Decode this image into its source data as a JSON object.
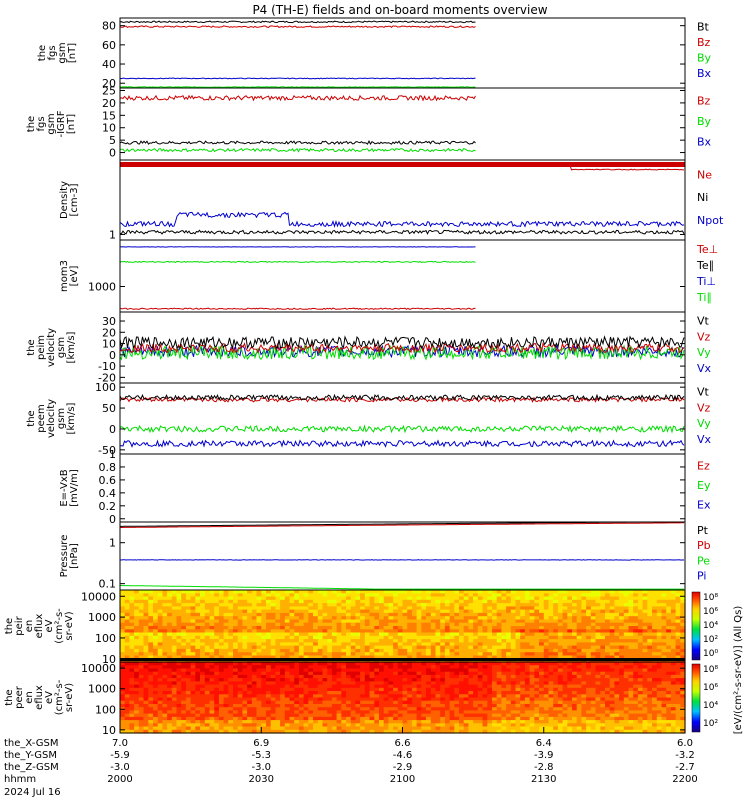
{
  "title": "P4 (TH-E) fields and on-board moments overview",
  "colors": {
    "black": "#000000",
    "red": "#cc0000",
    "green": "#00dd00",
    "blue": "#0000cc"
  },
  "xaxis": {
    "row_labels": [
      "the_X-GSM",
      "the_Y-GSM",
      "the_Z-GSM",
      "hhmm",
      "2024 Jul 16"
    ],
    "ticks": [
      {
        "vals": [
          "7.0",
          "-5.9",
          "-3.0",
          "2000"
        ]
      },
      {
        "vals": [
          "6.9",
          "-5.3",
          "-3.0",
          "2030"
        ]
      },
      {
        "vals": [
          "6.6",
          "-4.6",
          "-2.9",
          "2100"
        ]
      },
      {
        "vals": [
          "6.4",
          "-3.9",
          "-2.8",
          "2130"
        ]
      },
      {
        "vals": [
          "6.0",
          "-3.2",
          "-2.7",
          "2200"
        ]
      }
    ]
  },
  "colorbar": {
    "label": "[eV/(cm²-s-sr-eV)] (All Qs)",
    "top_ticks": [
      "10⁸",
      "10⁶",
      "10⁴",
      "10²",
      "10⁰"
    ],
    "bottom_ticks": [
      "10⁸",
      "10⁶",
      "10⁴",
      "10²"
    ]
  },
  "chart_data": [
    {
      "type": "line",
      "ylabel": "the\nfgs\ngsm\n[nT]",
      "ylim": [
        15,
        88
      ],
      "yticks": [
        20,
        40,
        60,
        80
      ],
      "legend": [
        "Bt",
        "Bz",
        "By",
        "Bx"
      ],
      "series": [
        {
          "name": "Bt",
          "color": "black",
          "base": 84,
          "noise": 0.8,
          "extent": 0.63
        },
        {
          "name": "Bz",
          "color": "red",
          "base": 79,
          "noise": 0.8,
          "extent": 0.63
        },
        {
          "name": "By",
          "color": "green",
          "base": 16,
          "noise": 0.3,
          "extent": 0.63
        },
        {
          "name": "Bx",
          "color": "blue",
          "base": 25,
          "noise": 0.4,
          "extent": 0.63
        }
      ]
    },
    {
      "type": "line",
      "ylabel": "the\nfgs\ngsm\n-IGRF\n[nT]",
      "ylim": [
        -3,
        26
      ],
      "yticks": [
        0,
        5,
        10,
        15,
        20,
        25
      ],
      "legend": [
        "Bz",
        "By",
        "Bx"
      ],
      "series": [
        {
          "name": "Bz",
          "color": "red",
          "base": 22,
          "noise": 0.9,
          "extent": 0.63
        },
        {
          "name": "Bx",
          "color": "black",
          "base": 4,
          "noise": 0.6,
          "extent": 0.63
        },
        {
          "name": "By",
          "color": "green",
          "base": 1,
          "noise": 0.6,
          "extent": 0.63
        }
      ]
    },
    {
      "type": "line",
      "ylabel": "Density\n[cm-3]",
      "ylim": [
        0.8,
        20
      ],
      "yticks": [
        1
      ],
      "legend": [
        "Ne",
        "Ni",
        "Npot"
      ],
      "series": [
        {
          "name": "Ne",
          "color": "red",
          "base": 16,
          "noise": 0.2,
          "extent": 1.0
        },
        {
          "name": "Ni",
          "color": "black",
          "base": 1.1,
          "noise": 0.08,
          "extent": 1.0
        },
        {
          "name": "Npot",
          "color": "blue",
          "base": 1.7,
          "noise": 0.25,
          "extent": 1.0
        }
      ]
    },
    {
      "type": "line",
      "ylabel": "mom3\n[eV]",
      "ylim": [
        300,
        9000
      ],
      "yticks": [
        1000
      ],
      "legend": [
        "Te⊥",
        "Te∥",
        "Ti⊥",
        "Ti∥"
      ],
      "series": [
        {
          "name": "Te⊥",
          "color": "red",
          "base": 350,
          "noise": 10,
          "extent": 0.63
        },
        {
          "name": "Ti∥",
          "color": "green",
          "base": 3200,
          "noise": 80,
          "extent": 0.63
        },
        {
          "name": "Ti⊥",
          "color": "blue",
          "base": 6500,
          "noise": 60,
          "extent": 0.63
        }
      ]
    },
    {
      "type": "line",
      "ylabel": "the\npeim\nvelocity\ngsm\n[km/s]",
      "ylim": [
        -25,
        38
      ],
      "yticks": [
        -20,
        -10,
        0,
        10,
        20,
        30
      ],
      "legend": [
        "Vt",
        "Vz",
        "Vy",
        "Vx"
      ],
      "series": [
        {
          "name": "Vx",
          "color": "blue",
          "base": 3,
          "noise": 5,
          "extent": 1.0
        },
        {
          "name": "Vy",
          "color": "green",
          "base": 2,
          "noise": 6,
          "extent": 1.0
        },
        {
          "name": "Vz",
          "color": "red",
          "base": 6,
          "noise": 4,
          "extent": 1.0
        },
        {
          "name": "Vt",
          "color": "black",
          "base": 11,
          "noise": 5,
          "extent": 1.0
        }
      ]
    },
    {
      "type": "line",
      "ylabel": "the\npeem\nvelocity\ngsm\n[km/s]",
      "ylim": [
        -60,
        110
      ],
      "yticks": [
        -50,
        0,
        50,
        100
      ],
      "legend": [
        "Vt",
        "Vz",
        "Vy",
        "Vx"
      ],
      "series": [
        {
          "name": "Vx",
          "color": "blue",
          "base": -35,
          "noise": 7,
          "extent": 1.0
        },
        {
          "name": "Vy",
          "color": "green",
          "base": 0,
          "noise": 7,
          "extent": 1.0
        },
        {
          "name": "Vz",
          "color": "red",
          "base": 70,
          "noise": 5,
          "extent": 1.0
        },
        {
          "name": "Vt",
          "color": "black",
          "base": 75,
          "noise": 6,
          "extent": 1.0
        }
      ]
    },
    {
      "type": "line",
      "ylabel": "E=-VxB\n[mV/m]",
      "ylim": [
        -0.05,
        1.0
      ],
      "yticks": [
        0.0,
        0.2,
        0.4,
        0.6,
        0.8,
        1.0
      ],
      "legend": [
        "Ez",
        "Ey",
        "Ex"
      ],
      "series": []
    },
    {
      "type": "line",
      "ylabel": "Pressure\n[nPa]",
      "ylim": [
        0.07,
        3.2
      ],
      "yticks": [
        0.1,
        1.0
      ],
      "legend": [
        "Pt",
        "Pb",
        "Pe",
        "Pi"
      ],
      "series": [
        {
          "name": "Pt",
          "color": "black",
          "base": 2.5,
          "noise": 0.02,
          "extent": 1.0
        },
        {
          "name": "Pb",
          "color": "red",
          "base": 2.35,
          "noise": 0.02,
          "extent": 1.0
        },
        {
          "name": "Pe",
          "color": "blue",
          "base": 0.38,
          "noise": 0.004,
          "extent": 1.0
        },
        {
          "name": "Pi",
          "color": "green",
          "base": 0.09,
          "noise": 0.002,
          "extent": 1.0
        }
      ]
    },
    {
      "type": "heatmap",
      "ylabel": "the\npeir\nen\neflux\neV\n(cm²-s-\nsr-eV)",
      "ylim": [
        7,
        20000
      ],
      "yticks": [
        10,
        100,
        1000,
        10000
      ]
    },
    {
      "type": "heatmap",
      "ylabel": "the\npeer\nen\neflux\neV\n(cm²-s-\nsr-eV)",
      "ylim": [
        7,
        20000
      ],
      "yticks": [
        10,
        100,
        1000,
        10000
      ]
    }
  ]
}
